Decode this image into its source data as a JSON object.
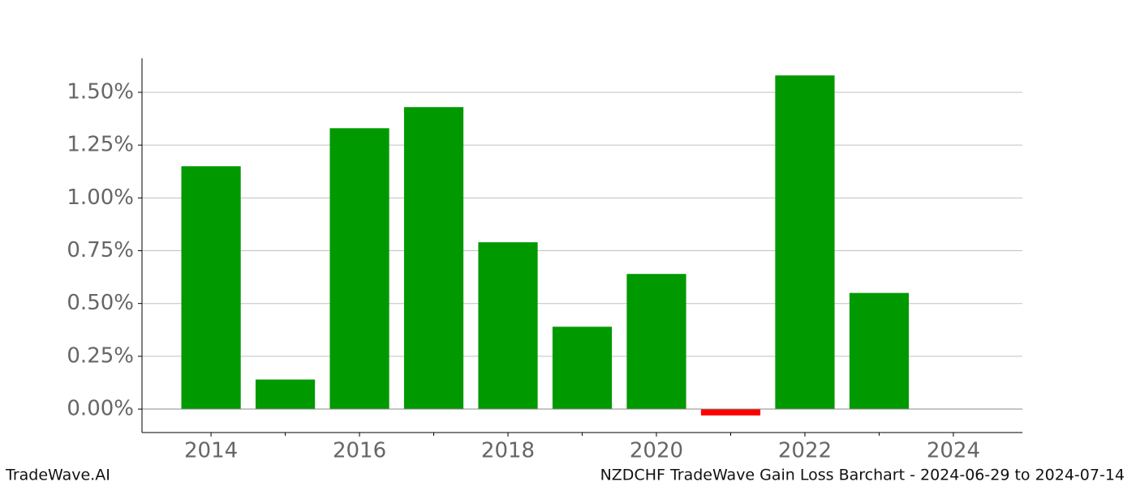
{
  "chart_data": {
    "type": "bar",
    "title": "NZDCHF TradeWave Gain Loss Barchart - 2024-06-29 to 2024-07-14",
    "brand": "TradeWave.AI",
    "x": [
      2014,
      2015,
      2016,
      2017,
      2018,
      2019,
      2020,
      2021,
      2022,
      2023
    ],
    "values": [
      1.15,
      0.14,
      1.33,
      1.43,
      0.79,
      0.39,
      0.64,
      -0.03,
      1.58,
      0.55
    ],
    "color": "#009900",
    "negative_color": "#ff0000",
    "xlim": [
      2013.07,
      2024.93
    ],
    "xticks": [
      2014,
      2016,
      2018,
      2020,
      2022,
      2024
    ],
    "xminorticks": [
      2015,
      2017,
      2019,
      2021,
      2023
    ],
    "ylim": [
      -0.111,
      1.661
    ],
    "yticks": [
      {
        "value": 0,
        "label": "0.00%"
      },
      {
        "value": 0.25,
        "label": "0.25%"
      },
      {
        "value": 0.5,
        "label": "0.50%"
      },
      {
        "value": 0.75,
        "label": "0.75%"
      },
      {
        "value": 1.0,
        "label": "1.00%"
      },
      {
        "value": 1.25,
        "label": "1.25%"
      },
      {
        "value": 1.5,
        "label": "1.50%"
      }
    ],
    "grid": true
  }
}
